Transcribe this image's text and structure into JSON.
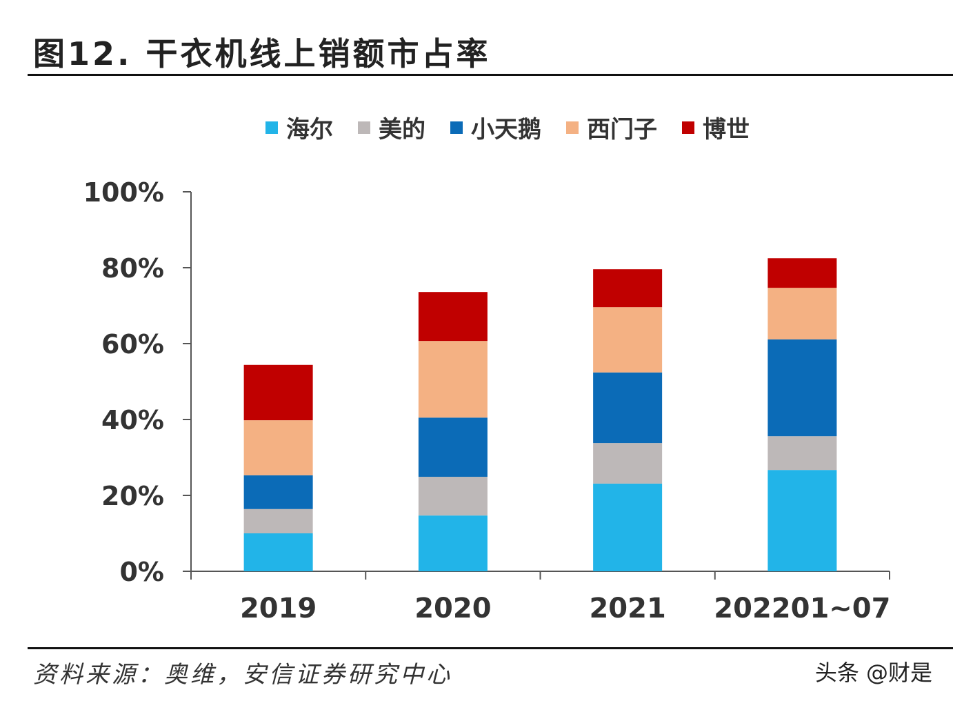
{
  "title": "图12. 干衣机线上销额市占率",
  "source": "资料来源：奥维，安信证券研究中心",
  "watermark": "头条 @财是",
  "chart_data": {
    "type": "bar",
    "stacked": true,
    "title": "图12. 干衣机线上销额市占率",
    "categories": [
      "2019",
      "2020",
      "2021",
      "202201~07"
    ],
    "series": [
      {
        "name": "海尔",
        "color": "#22b4e8",
        "values": [
          10.0,
          14.7,
          23.1,
          26.7
        ]
      },
      {
        "name": "美的",
        "color": "#bdb8b8",
        "values": [
          6.4,
          10.2,
          10.7,
          8.9
        ]
      },
      {
        "name": "小天鹅",
        "color": "#0b6bb7",
        "values": [
          8.9,
          15.6,
          18.6,
          25.5
        ]
      },
      {
        "name": "西门子",
        "color": "#f4b183",
        "values": [
          14.5,
          20.2,
          17.2,
          13.6
        ]
      },
      {
        "name": "博世",
        "color": "#c00000",
        "values": [
          14.6,
          12.9,
          10.0,
          7.8
        ]
      }
    ],
    "ylim": [
      0,
      100
    ],
    "yticks": [
      "0%",
      "20%",
      "40%",
      "60%",
      "80%",
      "100%"
    ],
    "xlabel": "",
    "ylabel": "",
    "grid": false,
    "legend": "top"
  }
}
